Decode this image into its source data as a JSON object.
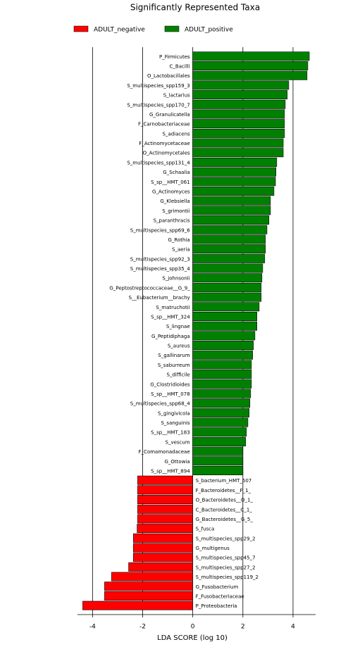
{
  "chart_data": {
    "type": "bar",
    "orientation": "horizontal",
    "title": "Significantly Represented Taxa",
    "x_label": "LDA SCORE (log 10)",
    "categories": [
      "P_Firmicutes",
      "C_Bacilli",
      "O_Lactobacillales",
      "S_multispecies_spp159_3",
      "S_lactarius",
      "S_multispecies_spp170_7",
      "G_Granulicatella",
      "F_Carnobacteriaceae",
      "S_adiacens",
      "F_Actinomycetaceae",
      "O_Actinomycetales",
      "S_multispecies_spp131_4",
      "G_Schaalia",
      "S_sp__HMT_061",
      "G_Actinomyces",
      "G_Klebsiella",
      "S_grimontii",
      "S_paranthracis",
      "S_multispecies_spp69_6",
      "G_Rothia",
      "S_aeria",
      "S_multispecies_spp92_3",
      "S_multispecies_spp35_4",
      "S_johnsonii",
      "G_Peptostreptococcaceae__G_9_",
      "S__Eubacterium__brachy",
      "S_matruchotii",
      "S_sp__HMT_324",
      "S_lingnae",
      "G_Peptidiphaga",
      "S_aureus",
      "S_gallinarum",
      "S_saburreum",
      "S_difficile",
      "G_Clostridioides",
      "S_sp__HMT_078",
      "S_multispecies_spp68_4",
      "S_gingivicola",
      "S_sanguinis",
      "S_sp__HMT_183",
      "S_vescum",
      "F_Comamonadaceae",
      "G_Ottowia",
      "S_sp__HMT_894",
      "S_bacterium_HMT_507",
      "F_Bacteroidetes__F_1_",
      "O_Bacteroidetes__O_1_",
      "C_Bacteroidetes__C_1_",
      "G_Bacteroidetes__G_5_",
      "S_fusca",
      "S_multispecies_spp29_2",
      "G_multigenus",
      "S_multispecies_spp45_7",
      "S_multispecies_spp27_2",
      "S_multispecies_spp119_2",
      "G_Fusobacterium",
      "F_Fusobacteriaceae",
      "P_Proteobacteria"
    ],
    "series": [
      {
        "name": "ADULT_negative",
        "color": "#ff0000",
        "values": [
          null,
          null,
          null,
          null,
          null,
          null,
          null,
          null,
          null,
          null,
          null,
          null,
          null,
          null,
          null,
          null,
          null,
          null,
          null,
          null,
          null,
          null,
          null,
          null,
          null,
          null,
          null,
          null,
          null,
          null,
          null,
          null,
          null,
          null,
          null,
          null,
          null,
          null,
          null,
          null,
          null,
          null,
          null,
          null,
          -2.2,
          -2.2,
          -2.2,
          -2.2,
          -2.2,
          -2.22,
          -2.37,
          -2.37,
          -2.37,
          -2.56,
          -3.24,
          -3.52,
          -3.52,
          -4.39
        ]
      },
      {
        "name": "ADULT_positive",
        "color": "#008000",
        "values": [
          4.65,
          4.59,
          4.56,
          3.83,
          3.77,
          3.69,
          3.66,
          3.66,
          3.66,
          3.61,
          3.61,
          3.35,
          3.32,
          3.3,
          3.24,
          3.1,
          3.1,
          3.04,
          2.96,
          2.9,
          2.9,
          2.87,
          2.79,
          2.76,
          2.73,
          2.73,
          2.65,
          2.56,
          2.56,
          2.48,
          2.42,
          2.39,
          2.34,
          2.34,
          2.34,
          2.31,
          2.28,
          2.25,
          2.2,
          2.14,
          2.11,
          2.0,
          2.0,
          2.0,
          null,
          null,
          null,
          null,
          null,
          null,
          null,
          null,
          null,
          null,
          null,
          null,
          null,
          null
        ]
      }
    ],
    "xlim": [
      -4.6,
      4.9
    ],
    "xticks": [
      -4,
      -2,
      0,
      2,
      4
    ],
    "grid": true
  }
}
